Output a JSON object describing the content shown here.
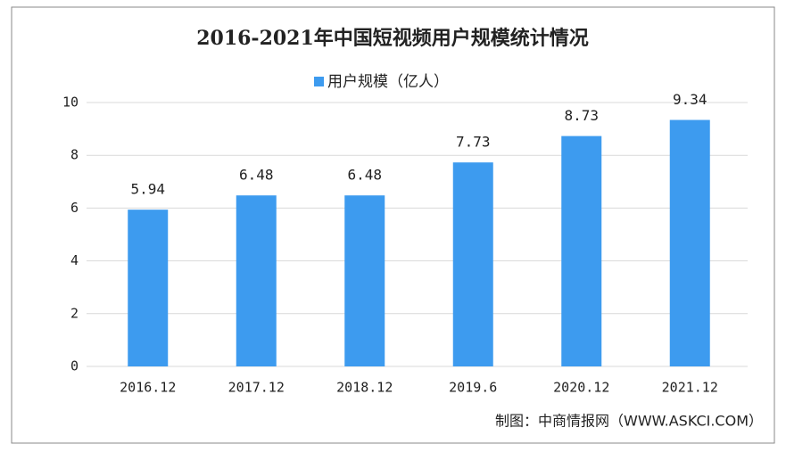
{
  "chart_data": {
    "type": "bar",
    "title": "2016-2021年中国短视频用户规模统计情况",
    "categories": [
      "2016.12",
      "2017.12",
      "2018.12",
      "2019.6",
      "2020.12",
      "2021.12"
    ],
    "series": [
      {
        "name": "用户规模（亿人）",
        "color": "#3d9bef",
        "values": [
          5.94,
          6.48,
          6.48,
          7.73,
          8.73,
          9.34
        ]
      }
    ],
    "ylim": [
      0,
      10
    ],
    "yticks": [
      0,
      2,
      4,
      6,
      8,
      10
    ],
    "grid": true,
    "source": "制图：中商情报网（WWW.ASKCI.COM）"
  }
}
